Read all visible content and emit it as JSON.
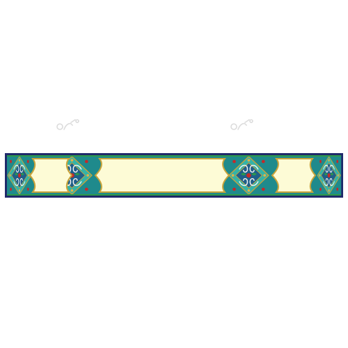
{
  "banner": {
    "panel_count": 3,
    "colors": {
      "navy_frame": "#1f2a6b",
      "green_rule": "#2e9a4a",
      "teal_ornament": "#1f8a8c",
      "turquoise_ornament": "#34b3a8",
      "gold_outline": "#c9a33a",
      "red_accent": "#c42a2a",
      "cream_panel": "#fdfbd6"
    }
  },
  "watermarks": [
    {
      "icon": "pngtree-watermark-logo"
    },
    {
      "icon": "pngtree-watermark-logo"
    }
  ]
}
